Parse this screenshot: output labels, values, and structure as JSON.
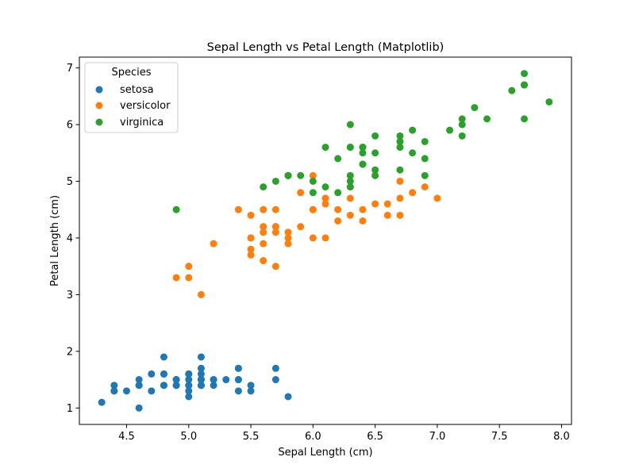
{
  "chart_data": {
    "type": "scatter",
    "title": "Sepal Length vs Petal Length (Matplotlib)",
    "xlabel": "Sepal Length (cm)",
    "ylabel": "Petal Length (cm)",
    "xlim": [
      4.12,
      8.08
    ],
    "ylim": [
      0.71,
      7.19
    ],
    "xticks": [
      4.5,
      5.0,
      5.5,
      6.0,
      6.5,
      7.0,
      7.5,
      8.0
    ],
    "xtick_labels": [
      "4.5",
      "5.0",
      "5.5",
      "6.0",
      "6.5",
      "7.0",
      "7.5",
      "8.0"
    ],
    "yticks": [
      1,
      2,
      3,
      4,
      5,
      6,
      7
    ],
    "ytick_labels": [
      "1",
      "2",
      "3",
      "4",
      "5",
      "6",
      "7"
    ],
    "grid": false,
    "legend": {
      "title": "Species",
      "placement": "top-left"
    },
    "series": [
      {
        "name": "setosa",
        "color": "#1f77b4",
        "points": [
          [
            5.1,
            1.4
          ],
          [
            4.9,
            1.4
          ],
          [
            4.7,
            1.3
          ],
          [
            4.6,
            1.5
          ],
          [
            5.0,
            1.4
          ],
          [
            5.4,
            1.7
          ],
          [
            4.6,
            1.4
          ],
          [
            5.0,
            1.5
          ],
          [
            4.4,
            1.4
          ],
          [
            4.9,
            1.5
          ],
          [
            5.4,
            1.5
          ],
          [
            4.8,
            1.6
          ],
          [
            4.8,
            1.4
          ],
          [
            4.3,
            1.1
          ],
          [
            5.8,
            1.2
          ],
          [
            5.7,
            1.5
          ],
          [
            5.4,
            1.3
          ],
          [
            5.1,
            1.4
          ],
          [
            5.7,
            1.7
          ],
          [
            5.1,
            1.5
          ],
          [
            5.4,
            1.7
          ],
          [
            5.1,
            1.5
          ],
          [
            4.6,
            1.0
          ],
          [
            5.1,
            1.7
          ],
          [
            4.8,
            1.9
          ],
          [
            5.0,
            1.6
          ],
          [
            5.0,
            1.6
          ],
          [
            5.2,
            1.5
          ],
          [
            5.2,
            1.4
          ],
          [
            4.7,
            1.6
          ],
          [
            4.8,
            1.6
          ],
          [
            5.4,
            1.5
          ],
          [
            5.2,
            1.5
          ],
          [
            5.5,
            1.4
          ],
          [
            4.9,
            1.5
          ],
          [
            5.0,
            1.2
          ],
          [
            5.5,
            1.3
          ],
          [
            4.9,
            1.4
          ],
          [
            4.4,
            1.3
          ],
          [
            5.1,
            1.5
          ],
          [
            5.0,
            1.3
          ],
          [
            4.5,
            1.3
          ],
          [
            4.4,
            1.3
          ],
          [
            5.0,
            1.6
          ],
          [
            5.1,
            1.9
          ],
          [
            4.8,
            1.4
          ],
          [
            5.1,
            1.6
          ],
          [
            4.6,
            1.4
          ],
          [
            5.3,
            1.5
          ],
          [
            5.0,
            1.4
          ]
        ]
      },
      {
        "name": "versicolor",
        "color": "#ff7f0e",
        "points": [
          [
            7.0,
            4.7
          ],
          [
            6.4,
            4.5
          ],
          [
            6.9,
            4.9
          ],
          [
            5.5,
            4.0
          ],
          [
            6.5,
            4.6
          ],
          [
            5.7,
            4.5
          ],
          [
            6.3,
            4.7
          ],
          [
            4.9,
            3.3
          ],
          [
            6.6,
            4.6
          ],
          [
            5.2,
            3.9
          ],
          [
            5.0,
            3.5
          ],
          [
            5.9,
            4.2
          ],
          [
            6.0,
            4.0
          ],
          [
            6.1,
            4.7
          ],
          [
            5.6,
            3.6
          ],
          [
            6.7,
            4.4
          ],
          [
            5.6,
            4.5
          ],
          [
            5.8,
            4.1
          ],
          [
            6.2,
            4.5
          ],
          [
            5.6,
            3.9
          ],
          [
            5.9,
            4.8
          ],
          [
            6.1,
            4.0
          ],
          [
            6.3,
            4.9
          ],
          [
            6.1,
            4.7
          ],
          [
            6.4,
            4.3
          ],
          [
            6.6,
            4.4
          ],
          [
            6.8,
            4.8
          ],
          [
            6.7,
            5.0
          ],
          [
            6.0,
            4.5
          ],
          [
            5.7,
            3.5
          ],
          [
            5.5,
            3.8
          ],
          [
            5.5,
            3.7
          ],
          [
            5.8,
            3.9
          ],
          [
            6.0,
            5.1
          ],
          [
            5.4,
            4.5
          ],
          [
            6.0,
            4.5
          ],
          [
            6.7,
            4.7
          ],
          [
            6.3,
            4.4
          ],
          [
            5.6,
            4.1
          ],
          [
            5.5,
            4.0
          ],
          [
            5.5,
            4.4
          ],
          [
            6.1,
            4.6
          ],
          [
            5.8,
            4.0
          ],
          [
            5.0,
            3.3
          ],
          [
            5.6,
            4.2
          ],
          [
            5.7,
            4.2
          ],
          [
            5.7,
            4.2
          ],
          [
            6.2,
            4.3
          ],
          [
            5.1,
            3.0
          ],
          [
            5.7,
            4.1
          ]
        ]
      },
      {
        "name": "virginica",
        "color": "#2ca02c",
        "points": [
          [
            6.3,
            6.0
          ],
          [
            5.8,
            5.1
          ],
          [
            7.1,
            5.9
          ],
          [
            6.3,
            5.6
          ],
          [
            6.5,
            5.8
          ],
          [
            7.6,
            6.6
          ],
          [
            4.9,
            4.5
          ],
          [
            7.3,
            6.3
          ],
          [
            6.7,
            5.8
          ],
          [
            7.2,
            6.1
          ],
          [
            6.5,
            5.1
          ],
          [
            6.4,
            5.3
          ],
          [
            6.8,
            5.5
          ],
          [
            5.7,
            5.0
          ],
          [
            5.8,
            5.1
          ],
          [
            6.4,
            5.3
          ],
          [
            6.5,
            5.5
          ],
          [
            7.7,
            6.7
          ],
          [
            7.7,
            6.9
          ],
          [
            6.0,
            5.0
          ],
          [
            6.9,
            5.7
          ],
          [
            5.6,
            4.9
          ],
          [
            7.7,
            6.7
          ],
          [
            6.3,
            4.9
          ],
          [
            6.7,
            5.7
          ],
          [
            7.2,
            6.0
          ],
          [
            6.2,
            4.8
          ],
          [
            6.1,
            4.9
          ],
          [
            6.4,
            5.6
          ],
          [
            7.2,
            5.8
          ],
          [
            7.4,
            6.1
          ],
          [
            7.9,
            6.4
          ],
          [
            6.4,
            5.6
          ],
          [
            6.3,
            5.1
          ],
          [
            6.1,
            5.6
          ],
          [
            7.7,
            6.1
          ],
          [
            6.3,
            5.6
          ],
          [
            6.4,
            5.5
          ],
          [
            6.0,
            4.8
          ],
          [
            6.9,
            5.4
          ],
          [
            6.7,
            5.6
          ],
          [
            6.9,
            5.1
          ],
          [
            5.8,
            5.1
          ],
          [
            6.8,
            5.9
          ],
          [
            6.7,
            5.7
          ],
          [
            6.7,
            5.2
          ],
          [
            6.3,
            5.0
          ],
          [
            6.5,
            5.2
          ],
          [
            6.2,
            5.4
          ],
          [
            5.9,
            5.1
          ]
        ]
      }
    ]
  }
}
